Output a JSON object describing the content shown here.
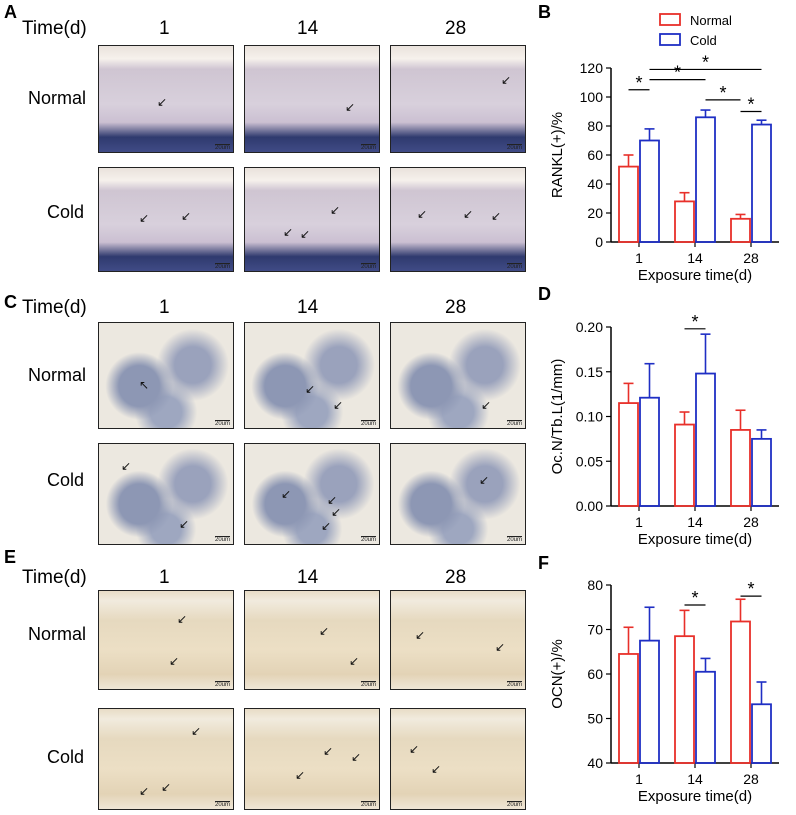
{
  "panels": {
    "A": {
      "letter": "A",
      "time_header": "Time(d)",
      "time_points": [
        "1",
        "14",
        "28"
      ],
      "rows": [
        "Normal",
        "Cold"
      ],
      "scale_label": "20um"
    },
    "C": {
      "letter": "C",
      "time_header": "Time(d)",
      "time_points": [
        "1",
        "14",
        "28"
      ],
      "rows": [
        "Normal",
        "Cold"
      ],
      "scale_label": "20um"
    },
    "E": {
      "letter": "E",
      "time_header": "Time(d)",
      "time_points": [
        "1",
        "14",
        "28"
      ],
      "rows": [
        "Normal",
        "Cold"
      ],
      "scale_label": "20um"
    }
  },
  "colors": {
    "normal": "#e8302a",
    "cold": "#1f2fc4"
  },
  "chart_data": [
    {
      "panel": "B",
      "type": "bar",
      "categories": [
        "1",
        "14",
        "28"
      ],
      "series": [
        {
          "name": "Normal",
          "values": [
            52,
            28,
            16
          ],
          "errors": [
            8,
            6,
            3
          ]
        },
        {
          "name": "Cold",
          "values": [
            70,
            86,
            81
          ],
          "errors": [
            8,
            5,
            3
          ]
        }
      ],
      "xlabel": "Exposure time(d)",
      "ylabel": "RANKL(+)/%",
      "ylim": [
        0,
        120
      ],
      "yticks": [
        "0",
        "20",
        "40",
        "60",
        "80",
        "100",
        "120"
      ],
      "legend": "top-right",
      "significance": [
        {
          "from": 0,
          "to": 1,
          "level": 105,
          "label": "*"
        },
        {
          "from": 1,
          "to": 3,
          "level": 112,
          "label": "*"
        },
        {
          "from": 3,
          "to": 4,
          "level": 98,
          "label": "*"
        },
        {
          "from": 1,
          "to": 5,
          "level": 119,
          "label": "*"
        },
        {
          "from": 4,
          "to": 5,
          "level": 90,
          "label": "*"
        }
      ]
    },
    {
      "panel": "D",
      "type": "bar",
      "categories": [
        "1",
        "14",
        "28"
      ],
      "series": [
        {
          "name": "Normal",
          "values": [
            0.115,
            0.091,
            0.085
          ],
          "errors": [
            0.022,
            0.014,
            0.022
          ]
        },
        {
          "name": "Cold",
          "values": [
            0.121,
            0.148,
            0.075
          ],
          "errors": [
            0.038,
            0.044,
            0.01
          ]
        }
      ],
      "xlabel": "Exposure time(d)",
      "ylabel": "Oc.N/Tb.L(1/mm)",
      "ylim": [
        0,
        0.2
      ],
      "yticks": [
        "0.00",
        "0.05",
        "0.10",
        "0.15",
        "0.20"
      ],
      "significance": [
        {
          "from": 2,
          "to": 3,
          "level": 0.198,
          "label": "*"
        }
      ]
    },
    {
      "panel": "F",
      "type": "bar",
      "categories": [
        "1",
        "14",
        "28"
      ],
      "series": [
        {
          "name": "Normal",
          "values": [
            64.5,
            68.5,
            71.8
          ],
          "errors": [
            6,
            5.8,
            5
          ]
        },
        {
          "name": "Cold",
          "values": [
            67.5,
            60.5,
            53.2
          ],
          "errors": [
            7.5,
            3,
            5
          ]
        }
      ],
      "xlabel": "Exposure time(d)",
      "ylabel": "OCN(+)/%",
      "ylim": [
        40,
        80
      ],
      "yticks": [
        "40",
        "50",
        "60",
        "70",
        "80"
      ],
      "significance": [
        {
          "from": 2,
          "to": 3,
          "level": 75.5,
          "label": "*"
        },
        {
          "from": 4,
          "to": 5,
          "level": 77.5,
          "label": "*"
        }
      ]
    }
  ]
}
